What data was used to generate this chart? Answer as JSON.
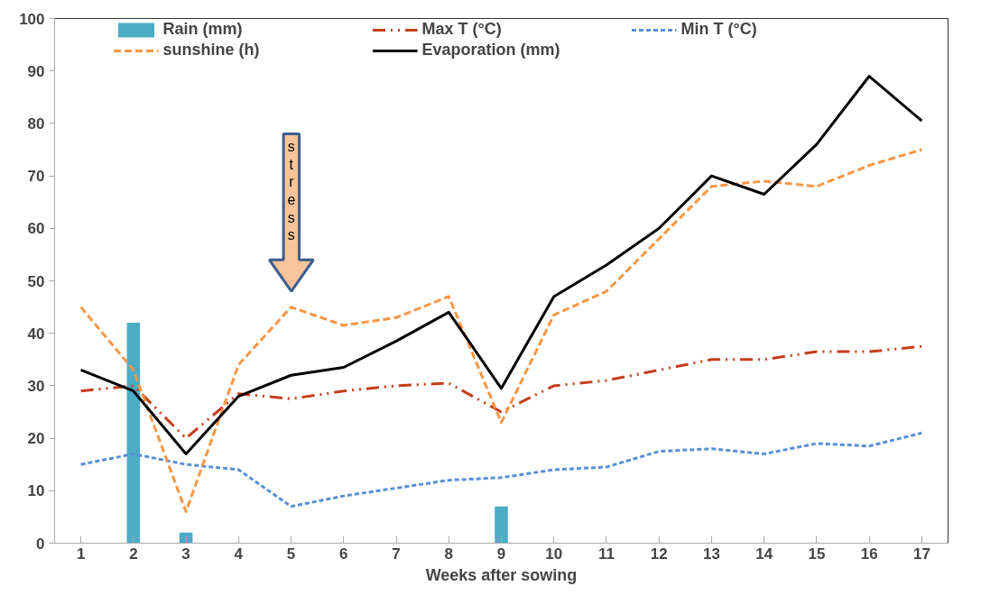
{
  "chart_data": {
    "type": "line",
    "xlabel": "Weeks after sowing",
    "x": [
      1,
      2,
      3,
      4,
      5,
      6,
      7,
      8,
      9,
      10,
      11,
      12,
      13,
      14,
      15,
      16,
      17
    ],
    "xlim": [
      0.5,
      17.5
    ],
    "xticks": [
      1,
      2,
      3,
      4,
      5,
      6,
      7,
      8,
      9,
      10,
      11,
      12,
      13,
      14,
      15,
      16,
      17
    ],
    "ylim": [
      0,
      100
    ],
    "yticks": [
      0,
      10,
      20,
      30,
      40,
      50,
      60,
      70,
      80,
      90,
      100
    ],
    "grid": false,
    "legend": "top",
    "series": [
      {
        "name": "Rain (mm)",
        "type": "bar",
        "color": "#4bacc6",
        "values": [
          null,
          42,
          2,
          null,
          null,
          null,
          null,
          null,
          7,
          null,
          null,
          null,
          null,
          null,
          null,
          null,
          null
        ]
      },
      {
        "name": "Max T (°C)",
        "line_style": "dashdot",
        "color": "#c43e1c",
        "values": [
          29,
          30,
          20,
          28.5,
          27.5,
          29,
          30,
          30.5,
          25,
          30,
          31,
          33,
          35,
          35,
          36.5,
          36.5,
          37.5
        ]
      },
      {
        "name": "Min T (°C)",
        "line_style": "dotted",
        "color": "#5b8fd6",
        "values": [
          15,
          17,
          15,
          14,
          7,
          9,
          10.5,
          12,
          12.5,
          14,
          14.5,
          17.5,
          18,
          17,
          19,
          18.5,
          21
        ]
      },
      {
        "name": "sunshine (h)",
        "line_style": "dashed",
        "color": "#f79646",
        "values": [
          45,
          33,
          6,
          34,
          45,
          41.5,
          43,
          47,
          23,
          43.5,
          48,
          58,
          68,
          69,
          68,
          72,
          75
        ]
      },
      {
        "name": "Evaporation (mm)",
        "line_style": "solid",
        "color": "#000000",
        "values": [
          33,
          29,
          17,
          28,
          32,
          33.5,
          38.5,
          44,
          29.5,
          47,
          53,
          60,
          70,
          66.5,
          76,
          89,
          80.5
        ]
      }
    ],
    "annotations": [
      "stress"
    ]
  }
}
